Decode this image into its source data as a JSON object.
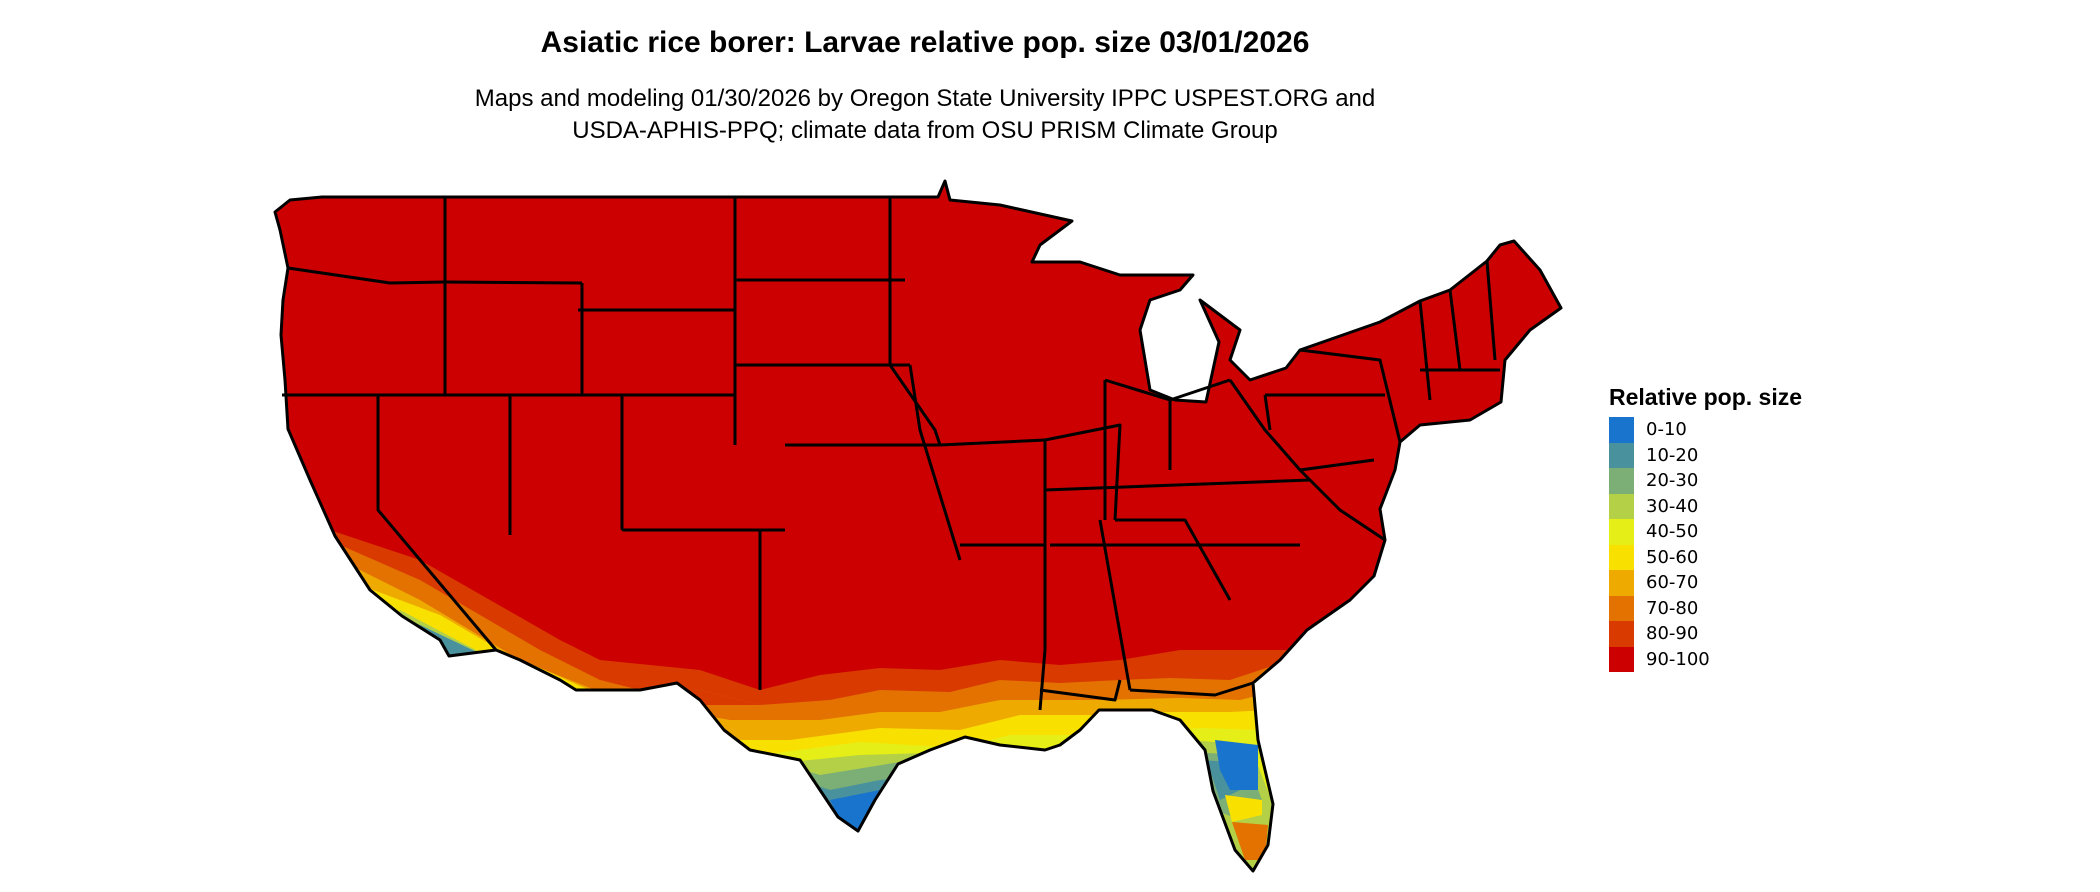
{
  "chart_data": {
    "type": "heatmap",
    "title": "Asiatic rice borer: Larvae relative pop. size 03/01/2026",
    "subtitle_lines": [
      "Maps and modeling 01/30/2026 by Oregon State University IPPC USPEST.ORG and",
      "USDA-APHIS-PPQ; climate data from OSU PRISM Climate Group"
    ],
    "region": "Contiguous United States",
    "legend": {
      "title": "Relative pop. size",
      "placement": "right",
      "classes": [
        {
          "label": "0-10",
          "color": "#1874CD"
        },
        {
          "label": "10-20",
          "color": "#4A919E"
        },
        {
          "label": "20-30",
          "color": "#7CAF76"
        },
        {
          "label": "30-40",
          "color": "#B3D047"
        },
        {
          "label": "40-50",
          "color": "#E5EE16"
        },
        {
          "label": "50-60",
          "color": "#F8E100"
        },
        {
          "label": "60-70",
          "color": "#EFAA00"
        },
        {
          "label": "70-80",
          "color": "#E37200"
        },
        {
          "label": "80-90",
          "color": "#D93A00"
        },
        {
          "label": "90-100",
          "color": "#CC0000"
        }
      ]
    }
  }
}
